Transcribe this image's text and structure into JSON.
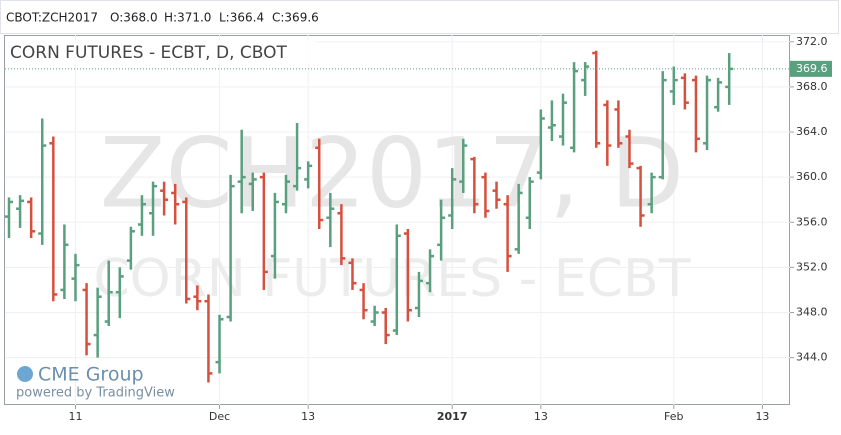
{
  "header": {
    "symbol": "CBOT:ZCH2017",
    "open": "O:368.0",
    "high": "H:371.0",
    "low": "L:366.4",
    "close": "C:369.6"
  },
  "chart_data": {
    "type": "ohlc",
    "title": "CORN FUTURES - ECBT, D, CBOT",
    "watermark": "ZCH2017, D",
    "watermark_subtitle": "CORN FUTURES - ECBT",
    "logo": "CME Group",
    "credit": "powered by TradingView",
    "up_color": "#5a9f7e",
    "down_color": "#d5503e",
    "grid": true,
    "categories": [
      null,
      null,
      null,
      null,
      null,
      null,
      "11",
      null,
      null,
      null,
      null,
      null,
      null,
      null,
      null,
      null,
      null,
      null,
      null,
      "Dec",
      null,
      null,
      null,
      null,
      null,
      null,
      null,
      "13",
      null,
      null,
      null,
      null,
      null,
      null,
      null,
      null,
      null,
      null,
      null,
      null,
      "2017",
      null,
      null,
      null,
      null,
      null,
      null,
      null,
      "13",
      null,
      null,
      null,
      null,
      null,
      null,
      null,
      null,
      null,
      null,
      null,
      "Feb",
      null,
      null,
      null,
      null,
      null,
      null,
      null,
      "13",
      null
    ],
    "open": [
      356.5,
      357.2,
      357.8,
      355.0,
      363.0,
      350.0,
      351.0,
      350.0,
      346.0,
      347.2,
      349.8,
      352.6,
      355.8,
      356.8,
      358.8,
      358.6,
      357.8,
      349.4,
      349.0,
      343.6,
      347.6,
      359.6,
      359.4,
      360.0,
      353.0,
      357.6,
      359.2,
      359.8,
      362.6,
      356.4,
      356.8,
      352.4,
      350.0,
      347.2,
      348.0,
      346.4,
      355.0,
      348.4,
      350.6,
      354.0,
      356.6,
      359.6,
      361.6,
      360.0,
      358.8,
      357.6,
      353.6,
      356.4,
      360.4,
      364.4,
      363.6,
      362.6,
      368.6,
      371.0,
      366.4,
      366.0,
      363.6,
      360.8,
      357.6,
      360.0,
      367.6,
      368.8,
      368.6,
      363.0,
      366.2,
      368.0,
      null,
      null,
      null,
      null
    ],
    "high": [
      358.2,
      358.4,
      358.2,
      365.2,
      363.6,
      355.8,
      353.2,
      350.6,
      350.2,
      352.6,
      352.0,
      355.6,
      358.4,
      359.6,
      359.6,
      359.4,
      358.2,
      350.4,
      349.6,
      347.8,
      360.2,
      364.2,
      360.4,
      360.4,
      358.6,
      360.2,
      364.8,
      361.4,
      363.4,
      358.6,
      357.6,
      352.8,
      350.6,
      348.6,
      348.4,
      355.8,
      355.4,
      351.6,
      353.6,
      358.0,
      360.8,
      363.4,
      361.8,
      360.4,
      359.6,
      358.4,
      359.4,
      360.0,
      366.0,
      366.8,
      367.4,
      370.2,
      370.2,
      371.2,
      366.8,
      366.8,
      364.2,
      361.0,
      360.4,
      369.4,
      369.8,
      369.2,
      369.0,
      369.0,
      368.8,
      371.0,
      null,
      null,
      null,
      null
    ],
    "low": [
      354.6,
      355.5,
      354.6,
      354.0,
      349.0,
      349.2,
      349.0,
      344.2,
      344.0,
      346.8,
      347.5,
      351.8,
      354.8,
      354.8,
      356.6,
      355.8,
      348.8,
      348.2,
      341.8,
      342.6,
      347.2,
      356.8,
      357.0,
      350.0,
      351.0,
      356.8,
      358.8,
      359.0,
      355.4,
      353.8,
      352.2,
      350.0,
      347.4,
      346.8,
      345.2,
      346.0,
      347.2,
      347.6,
      349.8,
      352.6,
      355.4,
      358.6,
      356.8,
      356.4,
      357.2,
      351.6,
      353.2,
      355.4,
      359.8,
      363.2,
      362.8,
      362.2,
      367.2,
      362.6,
      361.0,
      362.6,
      360.8,
      355.6,
      356.8,
      359.8,
      366.4,
      366.0,
      362.2,
      362.4,
      365.8,
      366.4,
      null,
      null,
      null,
      null
    ],
    "close": [
      357.8,
      357.9,
      355.2,
      362.8,
      349.6,
      354.0,
      352.2,
      345.2,
      349.4,
      349.8,
      351.2,
      355.2,
      357.6,
      359.2,
      358.0,
      357.6,
      349.2,
      349.0,
      342.6,
      347.4,
      359.2,
      360.0,
      359.8,
      351.6,
      357.8,
      359.6,
      360.8,
      361.0,
      356.2,
      357.2,
      352.8,
      350.6,
      348.2,
      348.0,
      346.0,
      354.8,
      348.2,
      350.8,
      353.0,
      356.4,
      359.8,
      362.8,
      357.6,
      357.0,
      358.0,
      353.0,
      358.6,
      359.6,
      365.2,
      364.6,
      366.6,
      369.4,
      369.8,
      363.0,
      362.8,
      363.0,
      361.2,
      356.6,
      360.0,
      368.6,
      368.6,
      366.6,
      363.4,
      368.6,
      368.4,
      369.6,
      null,
      null,
      null,
      null
    ],
    "ylim": [
      339.8,
      372.6
    ],
    "yticks": [
      {
        "value": 344,
        "label": "344.0"
      },
      {
        "value": 348,
        "label": "348.0"
      },
      {
        "value": 352,
        "label": "352.0"
      },
      {
        "value": 356,
        "label": "356.0"
      },
      {
        "value": 360,
        "label": "360.0"
      },
      {
        "value": 364,
        "label": "364.0"
      },
      {
        "value": 368,
        "label": "368.0"
      },
      {
        "value": 372,
        "label": "372.0"
      }
    ]
  }
}
